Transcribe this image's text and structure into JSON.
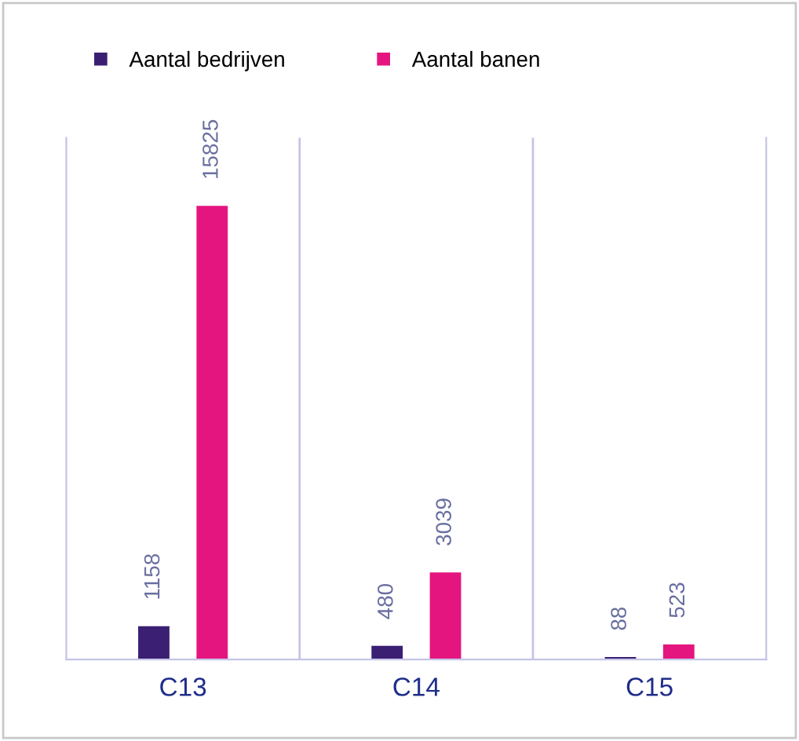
{
  "chart_data": {
    "type": "bar",
    "categories": [
      "C13",
      "C14",
      "C15"
    ],
    "series": [
      {
        "name": "Aantal bedrijven",
        "color": "#3b1f73",
        "values": [
          1158,
          480,
          88
        ]
      },
      {
        "name": "Aantal banen",
        "color": "#e5157f",
        "values": [
          15825,
          3039,
          523
        ]
      }
    ],
    "data_labels": true,
    "legend": "top left",
    "grid": false
  }
}
